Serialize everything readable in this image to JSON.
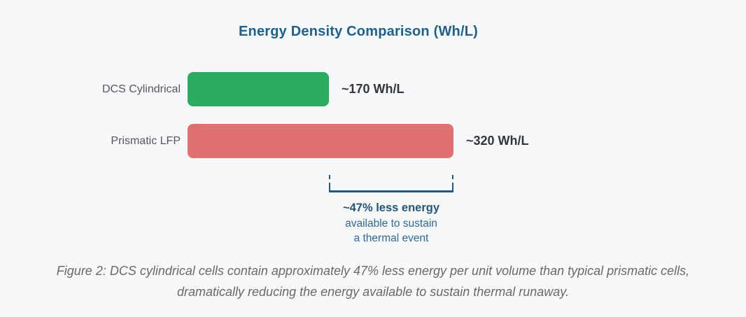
{
  "figure": {
    "caption_line1": "Figure 2: DCS cylindrical cells contain approximately 47% less energy per unit volume than typical prismatic cells,",
    "caption_line2": "dramatically reducing the energy available to sustain thermal runaway."
  },
  "chart_data": {
    "type": "bar",
    "orientation": "horizontal",
    "title": "Energy Density Comparison (Wh/L)",
    "categories": [
      "DCS Cylindrical",
      "Prismatic LFP"
    ],
    "values": [
      170,
      320
    ],
    "unit": "Wh/L",
    "value_labels": [
      "~170 Wh/L",
      "~320 Wh/L"
    ],
    "bar_colors": [
      "#2aac60",
      "#e27070"
    ],
    "xlim": [
      0,
      320
    ],
    "grid": false,
    "legend": "none",
    "annotation_lines": [
      "~47% less energy",
      "available to sustain",
      "a thermal event"
    ]
  },
  "colors": {
    "background": "#f7f8fa",
    "title": "#20618c",
    "bar_green": "#2aac60",
    "bar_red": "#e27070",
    "label_gray": "#55585d",
    "value_dark": "#30373f",
    "bracket_blue": "#24567f",
    "annotation_blue": "#2e6a9e",
    "caption_gray": "#696969"
  }
}
